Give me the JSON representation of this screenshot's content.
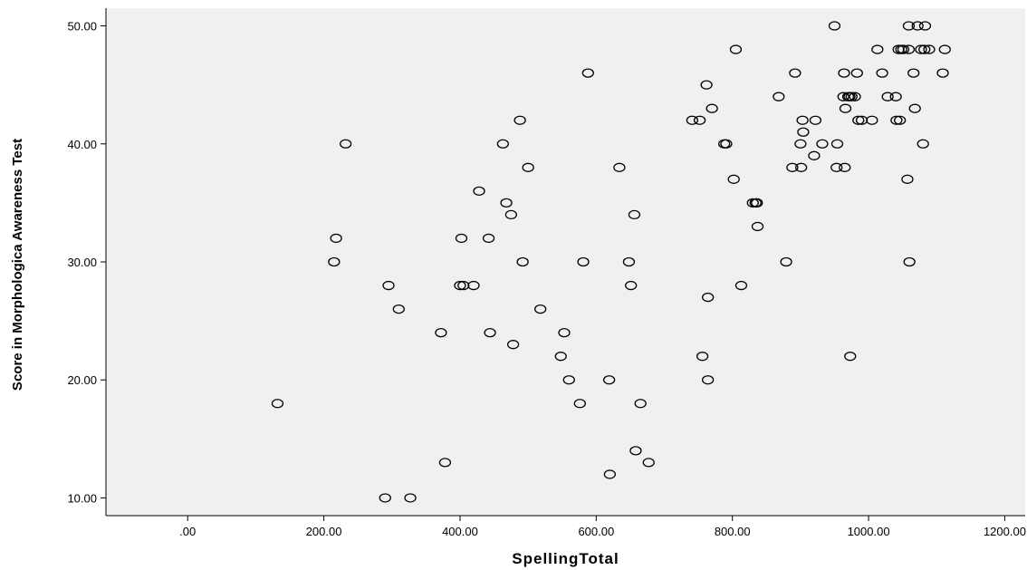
{
  "chart_data": {
    "type": "scatter",
    "title": "",
    "xlabel": "SpellingTotal",
    "ylabel": "Score in Morphologica Awareness Test",
    "xlim": [
      -120,
      1230
    ],
    "ylim": [
      8.5,
      51.5
    ],
    "xticks": [
      0,
      200,
      400,
      600,
      800,
      1000,
      1200
    ],
    "xtick_labels": [
      ".00",
      "200.00",
      "400.00",
      "600.00",
      "800.00",
      "1000.00",
      "1200.00"
    ],
    "yticks": [
      10,
      20,
      30,
      40,
      50
    ],
    "ytick_labels": [
      "10.00",
      "20.00",
      "30.00",
      "40.00",
      "50.00"
    ],
    "grid": false,
    "marker": "hollow-circle",
    "colors": {
      "plot_bg": "#f0f0f0",
      "marker": "#000000",
      "axis": "#000000"
    },
    "points": [
      [
        132,
        18
      ],
      [
        215,
        30
      ],
      [
        218,
        32
      ],
      [
        232,
        40
      ],
      [
        290,
        10
      ],
      [
        295,
        28
      ],
      [
        310,
        26
      ],
      [
        327,
        10
      ],
      [
        372,
        24
      ],
      [
        378,
        13
      ],
      [
        400,
        28
      ],
      [
        402,
        32
      ],
      [
        405,
        28
      ],
      [
        420,
        28
      ],
      [
        428,
        36
      ],
      [
        442,
        32
      ],
      [
        444,
        24
      ],
      [
        463,
        40
      ],
      [
        468,
        35
      ],
      [
        475,
        34
      ],
      [
        478,
        23
      ],
      [
        488,
        42
      ],
      [
        492,
        30
      ],
      [
        500,
        38
      ],
      [
        518,
        26
      ],
      [
        548,
        22
      ],
      [
        553,
        24
      ],
      [
        560,
        20
      ],
      [
        576,
        18
      ],
      [
        581,
        30
      ],
      [
        588,
        46
      ],
      [
        619,
        20
      ],
      [
        620,
        12
      ],
      [
        634,
        38
      ],
      [
        648,
        30
      ],
      [
        651,
        28
      ],
      [
        656,
        34
      ],
      [
        658,
        14
      ],
      [
        665,
        18
      ],
      [
        677,
        13
      ],
      [
        741,
        42
      ],
      [
        752,
        42
      ],
      [
        756,
        22
      ],
      [
        762,
        45
      ],
      [
        764,
        27
      ],
      [
        764,
        20
      ],
      [
        770,
        43
      ],
      [
        788,
        40
      ],
      [
        791,
        40
      ],
      [
        802,
        37
      ],
      [
        805,
        48
      ],
      [
        813,
        28
      ],
      [
        830,
        35
      ],
      [
        834,
        35
      ],
      [
        836,
        35
      ],
      [
        837,
        33
      ],
      [
        868,
        44
      ],
      [
        879,
        30
      ],
      [
        888,
        38
      ],
      [
        892,
        46
      ],
      [
        900,
        40
      ],
      [
        901,
        38
      ],
      [
        903,
        42
      ],
      [
        904,
        41
      ],
      [
        920,
        39
      ],
      [
        922,
        42
      ],
      [
        932,
        40
      ],
      [
        950,
        50
      ],
      [
        953,
        38
      ],
      [
        954,
        40
      ],
      [
        963,
        44
      ],
      [
        964,
        46
      ],
      [
        965,
        38
      ],
      [
        966,
        43
      ],
      [
        970,
        44
      ],
      [
        972,
        44
      ],
      [
        973,
        22
      ],
      [
        975,
        44
      ],
      [
        980,
        44
      ],
      [
        983,
        46
      ],
      [
        985,
        42
      ],
      [
        990,
        42
      ],
      [
        1005,
        42
      ],
      [
        1013,
        48
      ],
      [
        1020,
        46
      ],
      [
        1028,
        44
      ],
      [
        1040,
        44
      ],
      [
        1041,
        42
      ],
      [
        1044,
        48
      ],
      [
        1046,
        42
      ],
      [
        1048,
        48
      ],
      [
        1051,
        48
      ],
      [
        1057,
        37
      ],
      [
        1059,
        50
      ],
      [
        1059,
        48
      ],
      [
        1060,
        30
      ],
      [
        1066,
        46
      ],
      [
        1068,
        43
      ],
      [
        1072,
        50
      ],
      [
        1077,
        48
      ],
      [
        1080,
        40
      ],
      [
        1082,
        48
      ],
      [
        1083,
        50
      ],
      [
        1089,
        48
      ],
      [
        1109,
        46
      ],
      [
        1112,
        48
      ]
    ]
  }
}
